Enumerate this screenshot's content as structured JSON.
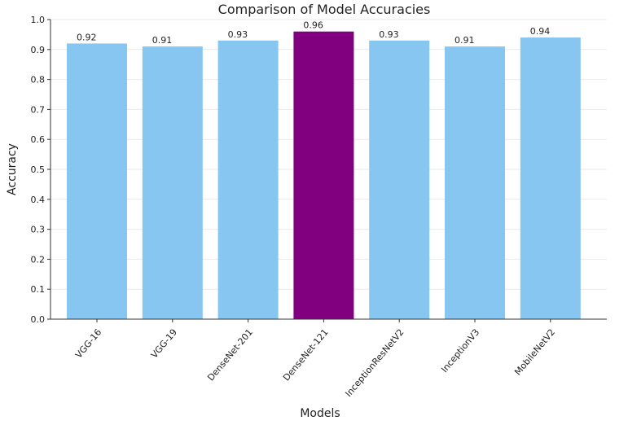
{
  "chart_data": {
    "type": "bar",
    "title": "Comparison of Model Accuracies",
    "xlabel": "Models",
    "ylabel": "Accuracy",
    "categories": [
      "VGG-16",
      "VGG-19",
      "DenseNet-201",
      "DenseNet-121",
      "InceptionResNetV2",
      "InceptionV3",
      "MobileNetV2"
    ],
    "values": [
      0.92,
      0.91,
      0.93,
      0.96,
      0.93,
      0.91,
      0.94
    ],
    "value_labels": [
      "0.92",
      "0.91",
      "0.93",
      "0.96",
      "0.93",
      "0.91",
      "0.94"
    ],
    "ylim": [
      0.0,
      1.0
    ],
    "yticks": [
      0.0,
      0.1,
      0.2,
      0.3,
      0.4,
      0.5,
      0.6,
      0.7,
      0.8,
      0.9,
      1.0
    ],
    "ytick_labels": [
      "0.0",
      "0.1",
      "0.2",
      "0.3",
      "0.4",
      "0.5",
      "0.6",
      "0.7",
      "0.8",
      "0.9",
      "1.0"
    ],
    "grid": "horizontal",
    "bar_color": "#87c6f0",
    "highlight_color": "#800080",
    "highlight_category": "DenseNet-121"
  }
}
